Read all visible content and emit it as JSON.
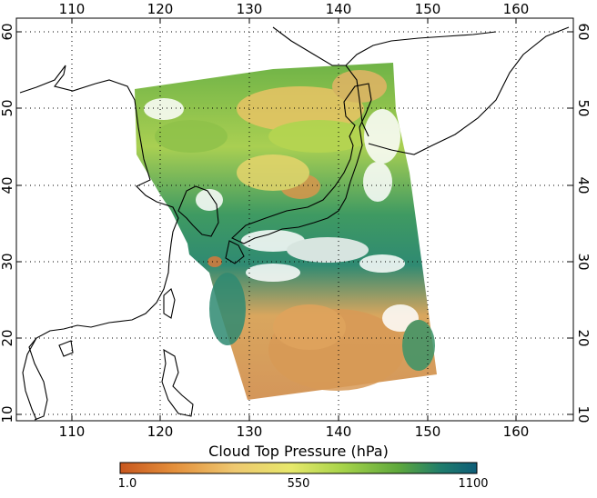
{
  "map": {
    "lon_ticks": [
      "110",
      "120",
      "130",
      "140",
      "150",
      "160"
    ],
    "lat_ticks": [
      "10",
      "20",
      "30",
      "40",
      "50",
      "60"
    ],
    "lon_range": [
      104.3,
      165.5
    ],
    "lat_range": [
      9.3,
      62.0
    ],
    "grid": "dotted",
    "coastline_color": "#000000"
  },
  "colorbar": {
    "title": "Cloud Top Pressure (hPa)",
    "min_label": "1.0",
    "mid_label": "550",
    "max_label": "1100",
    "colors": [
      "#c8571e",
      "#e48f3b",
      "#eec870",
      "#e7e86b",
      "#a8d44a",
      "#5ea83c",
      "#1f7c6c",
      "#0e5d78"
    ]
  }
}
